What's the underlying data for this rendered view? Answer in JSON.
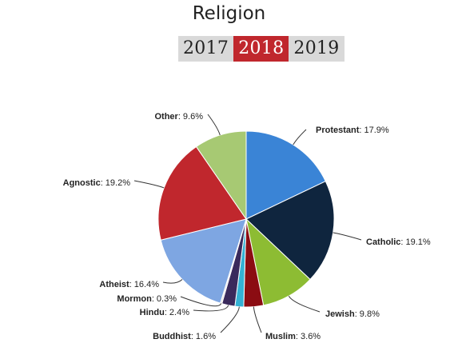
{
  "header": {
    "title": "Religion",
    "years": [
      {
        "label": "2017",
        "active": false
      },
      {
        "label": "2018",
        "active": true
      },
      {
        "label": "2019",
        "active": false
      }
    ]
  },
  "chart_data": {
    "type": "pie",
    "title": "Religion",
    "slices": [
      {
        "name": "Protestant",
        "value": 17.9,
        "display": ": 17.9%",
        "color": "#3a84d6"
      },
      {
        "name": "Catholic",
        "value": 19.1,
        "display": ": 19.1%",
        "color": "#0f253e"
      },
      {
        "name": "Jewish",
        "value": 9.8,
        "display": ": 9.8%",
        "color": "#8dbc33"
      },
      {
        "name": "Muslim",
        "value": 3.6,
        "display": ": 3.6%",
        "color": "#8b0c12"
      },
      {
        "name": "Buddhist",
        "value": 1.6,
        "display": ": 1.6%",
        "color": "#34b1d4"
      },
      {
        "name": "Hindu",
        "value": 2.4,
        "display": ": 2.4%",
        "color": "#3a2a5c"
      },
      {
        "name": "Mormon",
        "value": 0.3,
        "display": ": 0.3%",
        "color": "#e6e6e6"
      },
      {
        "name": "Atheist",
        "value": 16.4,
        "display": ": 16.4%",
        "color": "#7ea6e2"
      },
      {
        "name": "Agnostic",
        "value": 19.2,
        "display": ": 19.2%",
        "color": "#c0272d"
      },
      {
        "name": "Other",
        "value": 9.6,
        "display": ": 9.6%",
        "color": "#a7c973"
      }
    ]
  }
}
